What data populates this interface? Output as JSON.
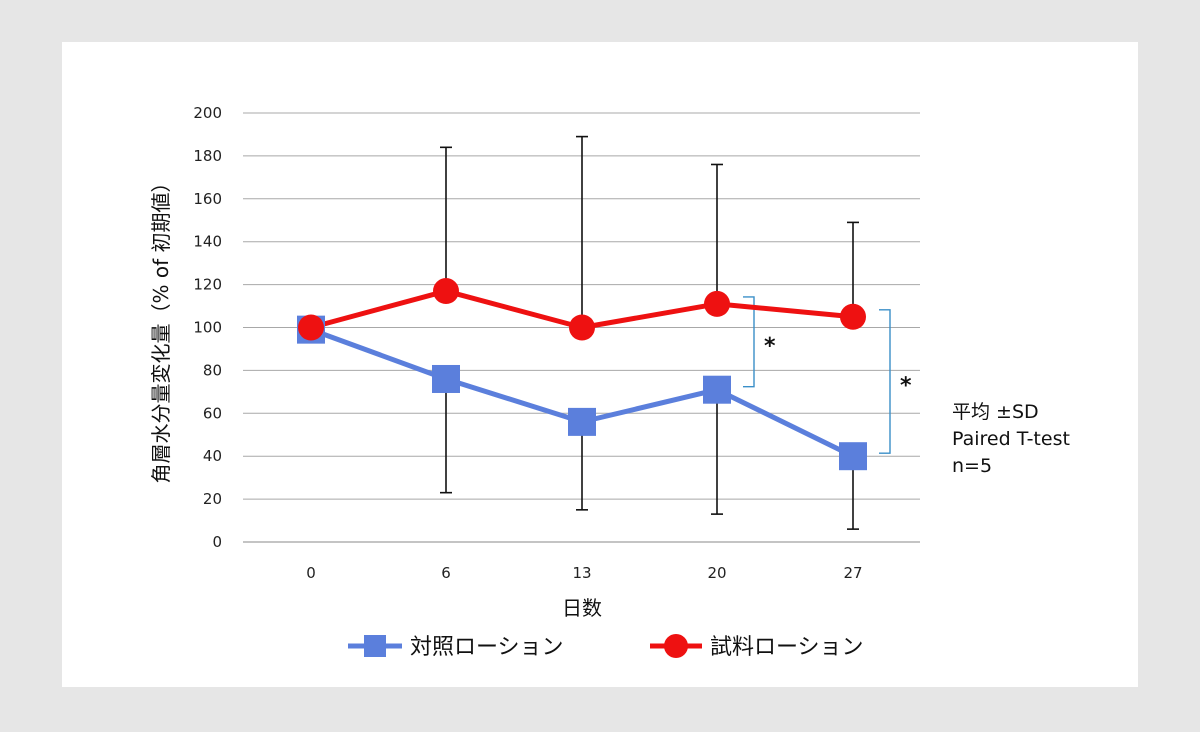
{
  "chart_data": {
    "type": "line",
    "categories": [
      "0",
      "6",
      "13",
      "20",
      "27"
    ],
    "xlabel": "日数",
    "ylabel": "角層水分量変化量（% of 初期値）",
    "ylim": [
      0,
      200
    ],
    "yticks": [
      0,
      20,
      40,
      60,
      80,
      100,
      120,
      140,
      160,
      180,
      200
    ],
    "grid": true,
    "legend_position": "bottom",
    "series": [
      {
        "name": "対照ローション",
        "color": "#5b7fdc",
        "marker": "square",
        "values": [
          99,
          76,
          56,
          71,
          40
        ],
        "error_low": [
          null,
          23,
          15,
          13,
          6
        ],
        "error_high": [
          null,
          null,
          null,
          null,
          null
        ]
      },
      {
        "name": "試料ローション",
        "color": "#ee1111",
        "marker": "circle",
        "values": [
          100,
          117,
          100,
          111,
          105
        ],
        "error_low": [
          null,
          null,
          null,
          null,
          null
        ],
        "error_high": [
          null,
          184,
          189,
          176,
          149
        ]
      }
    ],
    "annotations": [
      {
        "text": "*",
        "between_series_at_category": "20"
      },
      {
        "text": "*",
        "between_series_at_category": "27"
      }
    ],
    "notes": [
      "平均 ±SD",
      "Paired T-test",
      "n=5"
    ]
  }
}
